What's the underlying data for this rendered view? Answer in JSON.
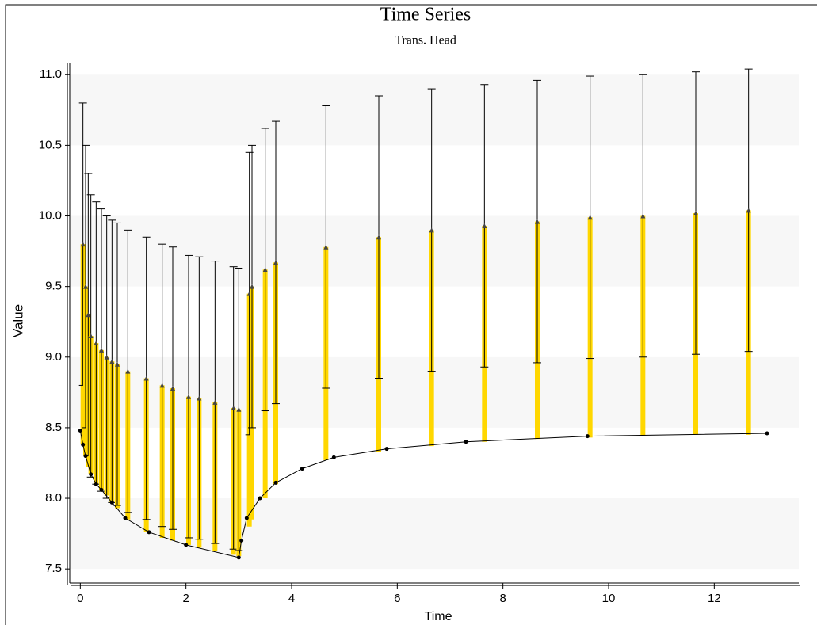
{
  "chart_data": {
    "type": "line-errorbar",
    "title": "Time Series",
    "subtitle": "Trans. Head",
    "xlabel": "Time",
    "ylabel": "Value",
    "xlim": [
      -0.2,
      13.6
    ],
    "ylim": [
      7.4,
      11.08
    ],
    "xticks": [
      0,
      2,
      4,
      6,
      8,
      10,
      12
    ],
    "yticks": [
      {
        "value": 7.5,
        "label": "7.5"
      },
      {
        "value": 8,
        "label": "8.0"
      },
      {
        "value": 8.5,
        "label": "8.5"
      },
      {
        "value": 9,
        "label": "9.0"
      },
      {
        "value": 9.5,
        "label": "9.5"
      },
      {
        "value": 10,
        "label": "10.0"
      },
      {
        "value": 10.5,
        "label": "10.5"
      },
      {
        "value": 11,
        "label": "11.0"
      }
    ],
    "series": [
      {
        "color": "#000000",
        "x": [
          0,
          0.05,
          0.1,
          0.2,
          0.3,
          0.4,
          0.6,
          0.85,
          1.3,
          2.0,
          3.0,
          3.05,
          3.15,
          3.4,
          3.7,
          4.2,
          4.8,
          5.8,
          7.3,
          9.6,
          13.0
        ],
        "values": [
          8.48,
          8.38,
          8.3,
          8.17,
          8.1,
          8.06,
          7.97,
          7.86,
          7.76,
          7.67,
          7.58,
          7.7,
          7.86,
          8.0,
          8.11,
          8.21,
          8.29,
          8.35,
          8.4,
          8.44,
          8.46
        ]
      },
      {
        "color": "#ffd700",
        "error": 1,
        "x": [
          0.05,
          0.1,
          0.15,
          0.2,
          0.3,
          0.4,
          0.5,
          0.6,
          0.7,
          0.9,
          1.25,
          1.55,
          1.75,
          2.05,
          2.25,
          2.55,
          2.9,
          3.0,
          3.2,
          3.25,
          3.5,
          3.7,
          4.65,
          5.65,
          6.65,
          7.65,
          8.65,
          9.65,
          10.65,
          11.65,
          12.65
        ],
        "values": [
          9.8,
          9.5,
          9.3,
          9.15,
          9.1,
          9.05,
          9.0,
          8.97,
          8.95,
          8.9,
          8.85,
          8.8,
          8.78,
          8.72,
          8.71,
          8.68,
          8.64,
          8.63,
          9.45,
          9.5,
          9.62,
          9.67,
          9.78,
          9.85,
          9.9,
          9.93,
          9.96,
          9.99,
          10.0,
          10.02,
          10.04
        ],
        "base": [
          8.38,
          8.3,
          8.22,
          8.17,
          8.1,
          8.06,
          8.02,
          7.97,
          7.93,
          7.85,
          7.76,
          7.72,
          7.7,
          7.67,
          7.65,
          7.63,
          7.6,
          7.59,
          7.8,
          7.85,
          8.0,
          8.1,
          8.27,
          8.33,
          8.37,
          8.4,
          8.42,
          8.43,
          8.44,
          8.45,
          8.45
        ]
      }
    ]
  }
}
